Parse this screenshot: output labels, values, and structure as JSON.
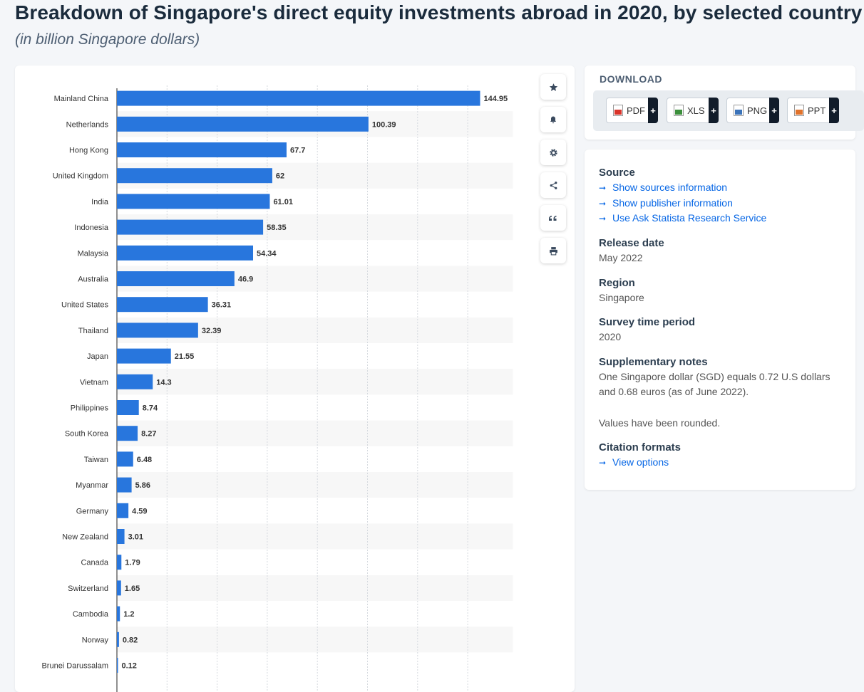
{
  "header": {
    "title": "Breakdown of Singapore's direct equity investments abroad in 2020, by selected country",
    "subtitle": "(in billion Singapore dollars)"
  },
  "toolbar": {
    "icons": [
      "star-icon",
      "bell-icon",
      "gear-icon",
      "share-icon",
      "quote-icon",
      "print-icon"
    ]
  },
  "download": {
    "heading": "DOWNLOAD",
    "buttons": [
      {
        "label": "PDF",
        "color": "#d9342b"
      },
      {
        "label": "XLS",
        "color": "#3c8f3c"
      },
      {
        "label": "PNG",
        "color": "#3b73b9"
      },
      {
        "label": "PPT",
        "color": "#e0722b"
      }
    ],
    "plus": "+"
  },
  "info": {
    "source_heading": "Source",
    "source_links": [
      "Show sources information",
      "Show publisher information",
      "Use Ask Statista Research Service"
    ],
    "release_heading": "Release date",
    "release_value": "May 2022",
    "region_heading": "Region",
    "region_value": "Singapore",
    "survey_heading": "Survey time period",
    "survey_value": "2020",
    "notes_heading": "Supplementary notes",
    "notes_text": "One Singapore dollar (SGD) equals 0.72 U.S dollars and 0.68 euros (as of June 2022).",
    "notes_text2": "Values have been rounded.",
    "citation_heading": "Citation formats",
    "citation_link": "View options"
  },
  "chart_data": {
    "type": "bar",
    "orientation": "horizontal",
    "categories": [
      "Mainland China",
      "Netherlands",
      "Hong Kong",
      "United Kingdom",
      "India",
      "Indonesia",
      "Malaysia",
      "Australia",
      "United States",
      "Thailand",
      "Japan",
      "Vietnam",
      "Philippines",
      "South Korea",
      "Taiwan",
      "Myanmar",
      "Germany",
      "New Zealand",
      "Canada",
      "Switzerland",
      "Cambodia",
      "Norway",
      "Brunei Darussalam"
    ],
    "values": [
      144.95,
      100.39,
      67.7,
      62,
      61.01,
      58.35,
      54.34,
      46.9,
      36.31,
      32.39,
      21.55,
      14.3,
      8.74,
      8.27,
      6.48,
      5.86,
      4.59,
      3.01,
      1.79,
      1.65,
      1.2,
      0.82,
      0.12
    ],
    "value_labels": [
      "144.95",
      "100.39",
      "67.7",
      "62",
      "61.01",
      "58.35",
      "54.34",
      "46.9",
      "36.31",
      "32.39",
      "21.55",
      "14.3",
      "8.74",
      "8.27",
      "6.48",
      "5.86",
      "4.59",
      "3.01",
      "1.79",
      "1.65",
      "1.2",
      "0.82",
      "0.12"
    ],
    "xlim": [
      0,
      160
    ],
    "grid_step": 20,
    "grid": true,
    "bar_color": "#2876dd"
  }
}
